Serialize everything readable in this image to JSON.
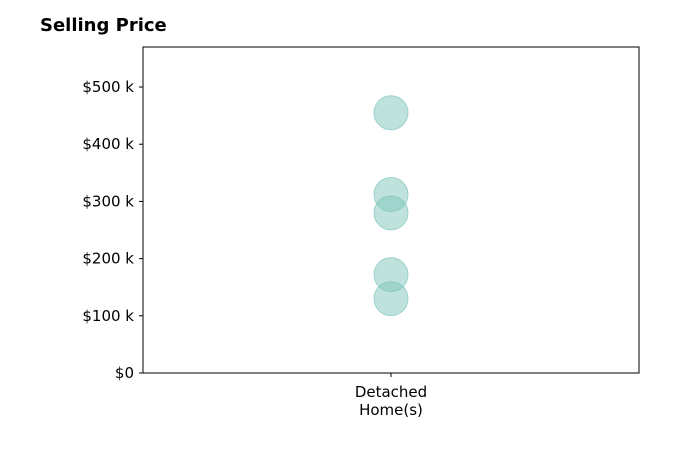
{
  "chart_data": {
    "type": "scatter",
    "title": "Selling Price",
    "xlabel": "",
    "ylabel": "",
    "categories": [
      [
        "Detached",
        "Home(s)"
      ]
    ],
    "yticks": [
      {
        "value": 0,
        "label": "$0"
      },
      {
        "value": 100000,
        "label": "$100 k"
      },
      {
        "value": 200000,
        "label": "$200 k"
      },
      {
        "value": 300000,
        "label": "$300 k"
      },
      {
        "value": 400000,
        "label": "$400 k"
      },
      {
        "value": 500000,
        "label": "$500 k"
      }
    ],
    "ylim": [
      0,
      570000
    ],
    "points": [
      {
        "category": 0,
        "y": 455000
      },
      {
        "category": 0,
        "y": 312000
      },
      {
        "category": 0,
        "y": 280000
      },
      {
        "category": 0,
        "y": 172000
      },
      {
        "category": 0,
        "y": 130000
      }
    ],
    "marker_color": "#7fc5bc",
    "grid": false,
    "legend": "none"
  }
}
